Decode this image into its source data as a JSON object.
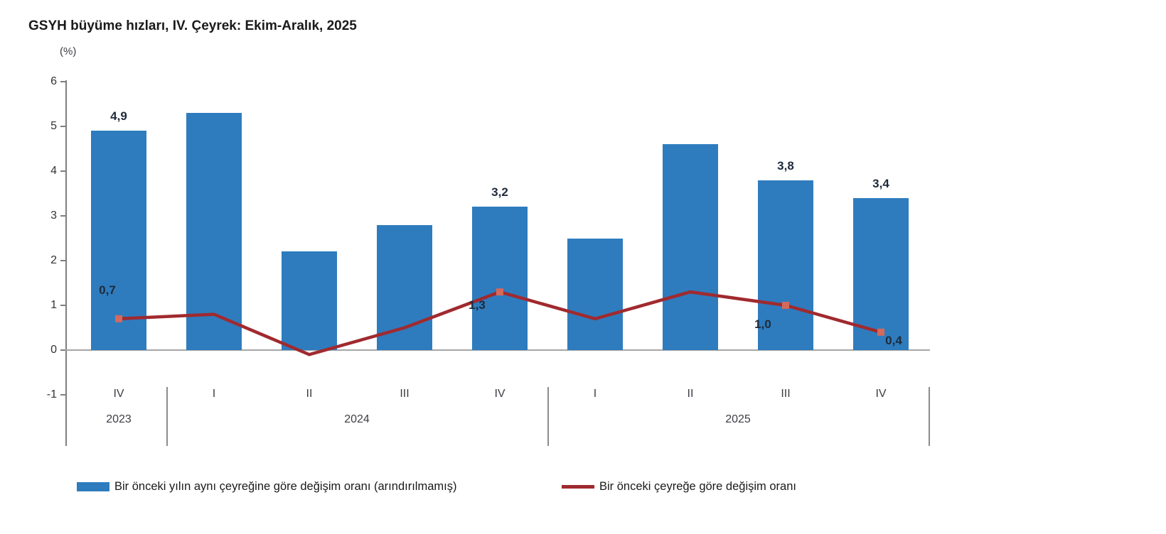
{
  "title": "GSYH büyüme hızları, IV. Çeyrek: Ekim-Aralık, 2025",
  "colors": {
    "bar": "#2E7CBE",
    "line": "#A02A2F",
    "marker": "#D5695B",
    "value_label": "#1E2A3A"
  },
  "legend": {
    "bar_label": "Bir önceki yılın aynı çeyreğine göre değişim oranı (arındırılmamış)",
    "line_label": "Bir önceki çeyreğe göre değişim oranı"
  },
  "chart_data": {
    "type": "combo",
    "title": "GSYH büyüme hızları, IV. Çeyrek: Ekim-Aralık, 2025",
    "ylabel": "(%)",
    "ylim": [
      -1,
      6
    ],
    "yticks": [
      "6",
      "5",
      "4",
      "3",
      "2",
      "1",
      "0",
      "-1"
    ],
    "ytick_values": [
      6,
      5,
      4,
      3,
      2,
      1,
      0,
      -1
    ],
    "categories": [
      "IV",
      "I",
      "II",
      "III",
      "IV",
      "I",
      "II",
      "III",
      "IV"
    ],
    "year_groups": [
      {
        "label": "2023",
        "span": 1
      },
      {
        "label": "2024",
        "span": 4
      },
      {
        "label": "2025",
        "span": 4
      }
    ],
    "grid": false,
    "legend_position": "bottom",
    "series": [
      {
        "name": "Bir önceki yılın aynı çeyreğine göre değişim oranı (arındırılmamış)",
        "type": "bar",
        "color": "#2E7CBE",
        "values": [
          4.9,
          5.3,
          2.2,
          2.8,
          3.2,
          2.5,
          4.6,
          3.8,
          3.4
        ],
        "labels": [
          "4,9",
          null,
          null,
          null,
          "3,2",
          null,
          null,
          "3,8",
          "3,4"
        ]
      },
      {
        "name": "Bir önceki çeyreğe göre değişim oranı",
        "type": "line",
        "color": "#A02A2F",
        "marker_color": "#D5695B",
        "values": [
          0.7,
          0.8,
          -0.1,
          0.5,
          1.3,
          0.7,
          1.3,
          1.0,
          0.4
        ],
        "labels": [
          "0,7",
          null,
          null,
          null,
          "1,3",
          null,
          null,
          "1,0",
          "0,4"
        ]
      }
    ]
  }
}
